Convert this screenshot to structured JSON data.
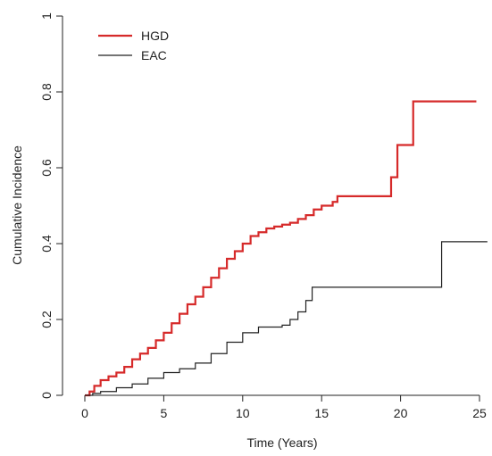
{
  "chart_data": {
    "type": "line",
    "xlabel": "Time (Years)",
    "ylabel": "Cumulative Incidence",
    "xlim": [
      0,
      25
    ],
    "ylim": [
      0,
      1
    ],
    "x_ticks": [
      "0",
      "5",
      "10",
      "15",
      "20",
      "25"
    ],
    "y_ticks": [
      "0",
      "0.2",
      "0.4",
      "0.6",
      "0.8",
      "1"
    ],
    "step": true,
    "grid": false,
    "legend_position": "top-left",
    "series": [
      {
        "name": "HGD",
        "color": "#d62a2a",
        "points": [
          [
            0,
            0
          ],
          [
            0.3,
            0.01
          ],
          [
            0.6,
            0.025
          ],
          [
            1,
            0.04
          ],
          [
            1.5,
            0.05
          ],
          [
            2,
            0.06
          ],
          [
            2.5,
            0.075
          ],
          [
            3,
            0.095
          ],
          [
            3.5,
            0.11
          ],
          [
            4,
            0.125
          ],
          [
            4.5,
            0.145
          ],
          [
            5,
            0.165
          ],
          [
            5.5,
            0.19
          ],
          [
            6,
            0.215
          ],
          [
            6.5,
            0.24
          ],
          [
            7,
            0.26
          ],
          [
            7.5,
            0.285
          ],
          [
            8,
            0.31
          ],
          [
            8.5,
            0.335
          ],
          [
            9,
            0.36
          ],
          [
            9.5,
            0.38
          ],
          [
            10,
            0.4
          ],
          [
            10.5,
            0.42
          ],
          [
            11,
            0.43
          ],
          [
            11.5,
            0.44
          ],
          [
            12,
            0.445
          ],
          [
            12.5,
            0.45
          ],
          [
            13,
            0.455
          ],
          [
            13.5,
            0.465
          ],
          [
            14,
            0.475
          ],
          [
            14.5,
            0.49
          ],
          [
            15,
            0.5
          ],
          [
            15.7,
            0.51
          ],
          [
            16,
            0.525
          ],
          [
            19.3,
            0.525
          ],
          [
            19.4,
            0.575
          ],
          [
            19.8,
            0.66
          ],
          [
            20.8,
            0.775
          ],
          [
            24.8,
            0.775
          ]
        ]
      },
      {
        "name": "EAC",
        "color": "#222222",
        "points": [
          [
            0,
            0
          ],
          [
            0.5,
            0.005
          ],
          [
            1,
            0.01
          ],
          [
            2,
            0.02
          ],
          [
            3,
            0.03
          ],
          [
            4,
            0.045
          ],
          [
            5,
            0.06
          ],
          [
            6,
            0.07
          ],
          [
            7,
            0.085
          ],
          [
            8,
            0.11
          ],
          [
            9,
            0.14
          ],
          [
            10,
            0.165
          ],
          [
            11,
            0.18
          ],
          [
            12.5,
            0.185
          ],
          [
            13,
            0.2
          ],
          [
            13.5,
            0.22
          ],
          [
            14,
            0.25
          ],
          [
            14.4,
            0.285
          ],
          [
            22.6,
            0.285
          ],
          [
            22.6,
            0.405
          ],
          [
            25.5,
            0.405
          ]
        ]
      }
    ]
  }
}
